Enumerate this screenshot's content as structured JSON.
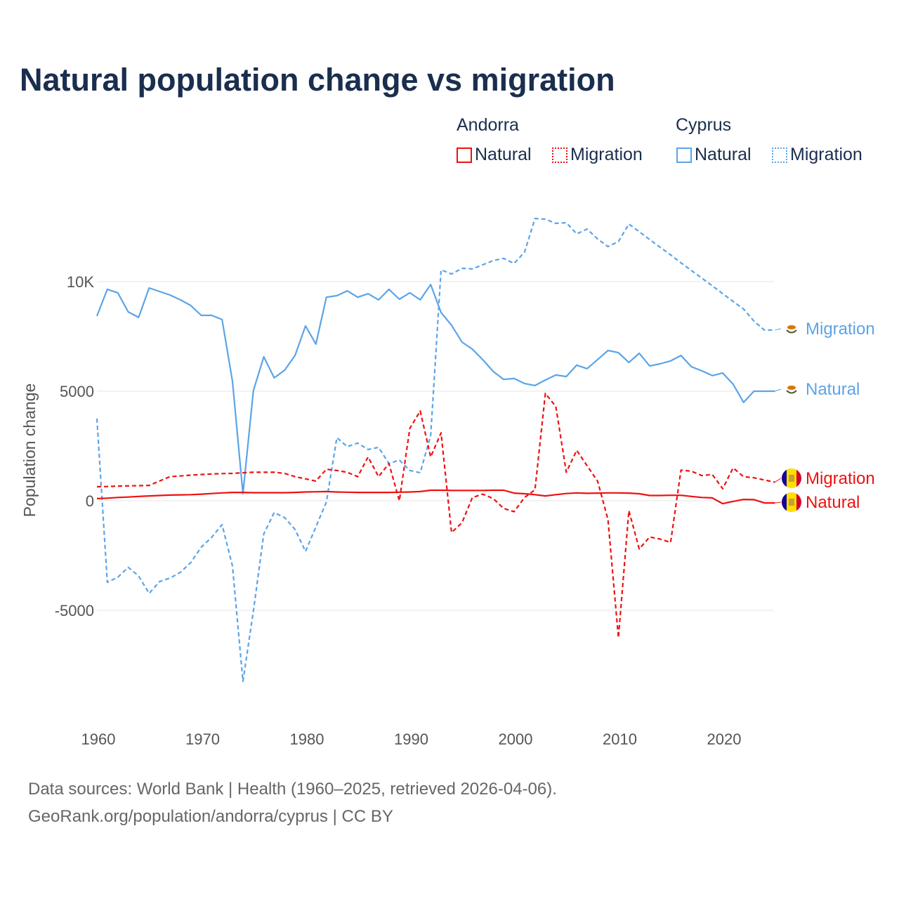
{
  "chart_data": {
    "type": "line",
    "title": "Natural population change vs migration",
    "ylabel": "Population change",
    "xlabel": "",
    "xlim": [
      1960,
      2025
    ],
    "ylim": [
      -9000,
      13500
    ],
    "x_ticks": [
      1960,
      1970,
      1980,
      1990,
      2000,
      2010,
      2020
    ],
    "y_ticks": [
      {
        "v": 10000,
        "label": "10K"
      },
      {
        "v": 5000,
        "label": "5000"
      },
      {
        "v": 0,
        "label": "0"
      },
      {
        "v": -5000,
        "label": "-5000"
      }
    ],
    "grid": true,
    "legend": {
      "placement": "top-right",
      "groups": [
        {
          "country": "Andorra",
          "items": [
            "Natural",
            "Migration"
          ]
        },
        {
          "country": "Cyprus",
          "items": [
            "Natural",
            "Migration"
          ]
        }
      ]
    },
    "start_year": 1960,
    "series": [
      {
        "name": "Cyprus Natural",
        "country": "Cyprus",
        "kind": "Natural",
        "end_label": "Natural",
        "color": "#5ba4e8",
        "dash": false,
        "values": [
          8430,
          9650,
          9490,
          8620,
          8370,
          9710,
          9550,
          9390,
          9170,
          8910,
          8460,
          8460,
          8270,
          5450,
          320,
          5030,
          6570,
          5610,
          5960,
          6630,
          7980,
          7150,
          9290,
          9360,
          9580,
          9290,
          9450,
          9170,
          9650,
          9200,
          9490,
          9170,
          9870,
          8590,
          8010,
          7240,
          6920,
          6440,
          5900,
          5540,
          5580,
          5350,
          5260,
          5510,
          5740,
          5670,
          6190,
          6030,
          6440,
          6860,
          6760,
          6310,
          6730,
          6150,
          6250,
          6380,
          6630,
          6120,
          5930,
          5710,
          5830,
          5320,
          4490,
          5000,
          5000,
          5000
        ]
      },
      {
        "name": "Cyprus Migration",
        "country": "Cyprus",
        "kind": "Migration",
        "end_label": "Migration",
        "color": "#5ba4e8",
        "dash": true,
        "values": [
          3750,
          -3720,
          -3490,
          -3040,
          -3430,
          -4230,
          -3690,
          -3530,
          -3270,
          -2820,
          -2120,
          -1670,
          -1090,
          -2980,
          -8240,
          -5030,
          -1510,
          -540,
          -770,
          -1310,
          -2310,
          -1190,
          -60,
          2880,
          2470,
          2630,
          2340,
          2440,
          1700,
          1860,
          1380,
          1280,
          2980,
          10540,
          10350,
          10610,
          10580,
          10770,
          10960,
          11060,
          10830,
          11350,
          12880,
          12850,
          12660,
          12690,
          12180,
          12400,
          11950,
          11600,
          11830,
          12630,
          12280,
          11920,
          11570,
          11220,
          10860,
          10510,
          10160,
          9810,
          9450,
          9100,
          8750,
          8200,
          7790,
          7790
        ]
      },
      {
        "name": "Andorra Migration",
        "country": "Andorra",
        "kind": "Migration",
        "end_label": "Migration",
        "color": "#ee1111",
        "dash": true,
        "values": [
          640,
          650,
          670,
          680,
          690,
          700,
          900,
          1100,
          1130,
          1170,
          1200,
          1220,
          1240,
          1250,
          1280,
          1300,
          1300,
          1300,
          1250,
          1100,
          1000,
          900,
          1440,
          1380,
          1300,
          1100,
          2000,
          1100,
          1700,
          0,
          3300,
          4100,
          2000,
          3100,
          -1450,
          -1000,
          150,
          300,
          100,
          -350,
          -500,
          150,
          500,
          4900,
          4300,
          1300,
          2300,
          1600,
          900,
          -850,
          -6250,
          -450,
          -2200,
          -1650,
          -1750,
          -1900,
          1400,
          1350,
          1150,
          1200,
          550,
          1500,
          1100,
          1050,
          950,
          850
        ]
      },
      {
        "name": "Andorra Natural",
        "country": "Andorra",
        "kind": "Natural",
        "end_label": "Natural",
        "color": "#ee1111",
        "dash": false,
        "values": [
          100,
          120,
          150,
          170,
          200,
          220,
          240,
          260,
          270,
          280,
          300,
          330,
          360,
          380,
          380,
          370,
          370,
          370,
          370,
          380,
          400,
          410,
          420,
          400,
          390,
          380,
          380,
          380,
          380,
          390,
          400,
          420,
          480,
          480,
          470,
          470,
          470,
          470,
          480,
          480,
          350,
          320,
          280,
          220,
          280,
          330,
          360,
          340,
          350,
          360,
          360,
          350,
          320,
          240,
          240,
          250,
          250,
          200,
          150,
          130,
          -130,
          -30,
          60,
          50,
          -100,
          -100
        ]
      }
    ],
    "sources": "Data sources: World Bank | Health (1960–2025, retrieved 2026-04-06).",
    "credit": "GeoRank.org/population/andorra/cyprus | CC BY"
  }
}
